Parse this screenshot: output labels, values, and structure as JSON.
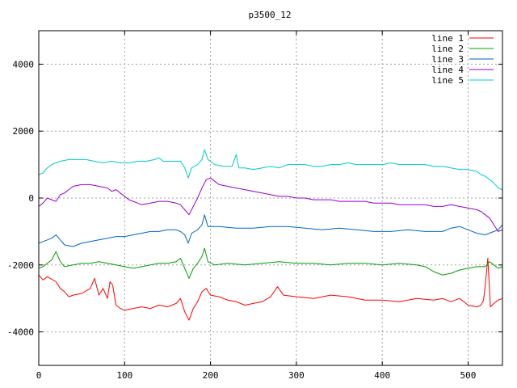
{
  "chart_data": {
    "type": "line",
    "title": "p3500_12",
    "xlabel": "",
    "ylabel": "",
    "xlim": [
      0,
      540
    ],
    "ylim": [
      -5000,
      5000
    ],
    "grid": true,
    "legend_position": "top-right",
    "x_ticks": [
      {
        "value": 0,
        "label": "0"
      },
      {
        "value": 100,
        "label": "100"
      },
      {
        "value": 200,
        "label": "200"
      },
      {
        "value": 300,
        "label": "300"
      },
      {
        "value": 400,
        "label": "400"
      },
      {
        "value": 500,
        "label": "500"
      }
    ],
    "y_ticks": [
      {
        "value": -4000,
        "label": "-4000"
      },
      {
        "value": -2000,
        "label": "-2000"
      },
      {
        "value": 0,
        "label": "0"
      },
      {
        "value": 2000,
        "label": "2000"
      },
      {
        "value": 4000,
        "label": "4000"
      }
    ],
    "series": [
      {
        "name": "line 1",
        "color": "#ff0000",
        "points": [
          [
            0,
            -2300
          ],
          [
            5,
            -2450
          ],
          [
            10,
            -2350
          ],
          [
            20,
            -2500
          ],
          [
            25,
            -2700
          ],
          [
            30,
            -2800
          ],
          [
            35,
            -2950
          ],
          [
            40,
            -2900
          ],
          [
            50,
            -2850
          ],
          [
            60,
            -2700
          ],
          [
            65,
            -2400
          ],
          [
            70,
            -2900
          ],
          [
            75,
            -2700
          ],
          [
            80,
            -3000
          ],
          [
            83,
            -2500
          ],
          [
            86,
            -2600
          ],
          [
            90,
            -3200
          ],
          [
            95,
            -3300
          ],
          [
            100,
            -3350
          ],
          [
            110,
            -3300
          ],
          [
            120,
            -3250
          ],
          [
            130,
            -3300
          ],
          [
            140,
            -3200
          ],
          [
            150,
            -3250
          ],
          [
            160,
            -3150
          ],
          [
            165,
            -3000
          ],
          [
            170,
            -3400
          ],
          [
            175,
            -3650
          ],
          [
            180,
            -3300
          ],
          [
            185,
            -3100
          ],
          [
            190,
            -2800
          ],
          [
            195,
            -2700
          ],
          [
            200,
            -2900
          ],
          [
            210,
            -2950
          ],
          [
            220,
            -3050
          ],
          [
            230,
            -3100
          ],
          [
            240,
            -3200
          ],
          [
            250,
            -3150
          ],
          [
            260,
            -3100
          ],
          [
            270,
            -2950
          ],
          [
            278,
            -2650
          ],
          [
            285,
            -2900
          ],
          [
            300,
            -2950
          ],
          [
            320,
            -3000
          ],
          [
            340,
            -2900
          ],
          [
            360,
            -2950
          ],
          [
            380,
            -3050
          ],
          [
            400,
            -3050
          ],
          [
            420,
            -3100
          ],
          [
            440,
            -3000
          ],
          [
            460,
            -3050
          ],
          [
            470,
            -3000
          ],
          [
            480,
            -3100
          ],
          [
            490,
            -3000
          ],
          [
            500,
            -3200
          ],
          [
            510,
            -3250
          ],
          [
            515,
            -3200
          ],
          [
            518,
            -3050
          ],
          [
            520,
            -2600
          ],
          [
            523,
            -1800
          ],
          [
            526,
            -3250
          ],
          [
            530,
            -3150
          ],
          [
            535,
            -3050
          ],
          [
            540,
            -3000
          ]
        ]
      },
      {
        "name": "line 2",
        "color": "#00a000",
        "points": [
          [
            0,
            -2100
          ],
          [
            5,
            -2050
          ],
          [
            10,
            -1950
          ],
          [
            15,
            -1850
          ],
          [
            20,
            -1600
          ],
          [
            25,
            -1900
          ],
          [
            30,
            -2050
          ],
          [
            40,
            -2000
          ],
          [
            50,
            -1950
          ],
          [
            60,
            -1950
          ],
          [
            70,
            -1900
          ],
          [
            80,
            -1950
          ],
          [
            90,
            -2000
          ],
          [
            100,
            -2050
          ],
          [
            110,
            -2100
          ],
          [
            120,
            -2050
          ],
          [
            130,
            -2000
          ],
          [
            140,
            -1950
          ],
          [
            150,
            -1950
          ],
          [
            160,
            -1900
          ],
          [
            165,
            -1800
          ],
          [
            170,
            -2100
          ],
          [
            175,
            -2400
          ],
          [
            180,
            -2100
          ],
          [
            185,
            -1950
          ],
          [
            190,
            -1750
          ],
          [
            193,
            -1500
          ],
          [
            197,
            -1900
          ],
          [
            205,
            -2000
          ],
          [
            220,
            -1950
          ],
          [
            240,
            -2000
          ],
          [
            260,
            -1950
          ],
          [
            280,
            -1900
          ],
          [
            300,
            -1950
          ],
          [
            320,
            -1950
          ],
          [
            340,
            -2000
          ],
          [
            360,
            -1950
          ],
          [
            380,
            -1950
          ],
          [
            400,
            -2000
          ],
          [
            420,
            -1950
          ],
          [
            440,
            -2000
          ],
          [
            450,
            -2050
          ],
          [
            460,
            -2200
          ],
          [
            470,
            -2300
          ],
          [
            480,
            -2250
          ],
          [
            490,
            -2150
          ],
          [
            500,
            -2100
          ],
          [
            510,
            -2050
          ],
          [
            520,
            -2050
          ],
          [
            525,
            -1900
          ],
          [
            530,
            -2000
          ],
          [
            535,
            -2100
          ],
          [
            540,
            -2050
          ]
        ]
      },
      {
        "name": "line 3",
        "color": "#0066cc",
        "points": [
          [
            0,
            -1350
          ],
          [
            5,
            -1300
          ],
          [
            10,
            -1250
          ],
          [
            15,
            -1200
          ],
          [
            20,
            -1100
          ],
          [
            25,
            -1250
          ],
          [
            30,
            -1400
          ],
          [
            40,
            -1450
          ],
          [
            50,
            -1350
          ],
          [
            60,
            -1300
          ],
          [
            70,
            -1250
          ],
          [
            80,
            -1200
          ],
          [
            90,
            -1150
          ],
          [
            100,
            -1150
          ],
          [
            110,
            -1100
          ],
          [
            120,
            -1050
          ],
          [
            130,
            -1000
          ],
          [
            140,
            -1000
          ],
          [
            150,
            -950
          ],
          [
            160,
            -950
          ],
          [
            165,
            -1000
          ],
          [
            170,
            -1100
          ],
          [
            174,
            -1350
          ],
          [
            178,
            -1050
          ],
          [
            185,
            -950
          ],
          [
            190,
            -800
          ],
          [
            193,
            -500
          ],
          [
            197,
            -850
          ],
          [
            210,
            -850
          ],
          [
            230,
            -900
          ],
          [
            250,
            -900
          ],
          [
            270,
            -850
          ],
          [
            290,
            -850
          ],
          [
            310,
            -900
          ],
          [
            330,
            -950
          ],
          [
            350,
            -900
          ],
          [
            370,
            -950
          ],
          [
            390,
            -1000
          ],
          [
            410,
            -1000
          ],
          [
            430,
            -950
          ],
          [
            450,
            -1000
          ],
          [
            470,
            -1000
          ],
          [
            480,
            -900
          ],
          [
            490,
            -850
          ],
          [
            500,
            -950
          ],
          [
            510,
            -1050
          ],
          [
            520,
            -1100
          ],
          [
            530,
            -1000
          ],
          [
            535,
            -950
          ],
          [
            540,
            -800
          ]
        ]
      },
      {
        "name": "line 4",
        "color": "#9900cc",
        "points": [
          [
            0,
            -250
          ],
          [
            5,
            -150
          ],
          [
            10,
            0
          ],
          [
            15,
            -50
          ],
          [
            20,
            -100
          ],
          [
            25,
            100
          ],
          [
            30,
            150
          ],
          [
            35,
            250
          ],
          [
            40,
            350
          ],
          [
            50,
            400
          ],
          [
            60,
            400
          ],
          [
            70,
            350
          ],
          [
            80,
            300
          ],
          [
            85,
            200
          ],
          [
            90,
            250
          ],
          [
            95,
            150
          ],
          [
            100,
            50
          ],
          [
            105,
            -50
          ],
          [
            110,
            -100
          ],
          [
            115,
            -150
          ],
          [
            120,
            -200
          ],
          [
            130,
            -150
          ],
          [
            140,
            -100
          ],
          [
            150,
            -100
          ],
          [
            160,
            -150
          ],
          [
            165,
            -200
          ],
          [
            170,
            -350
          ],
          [
            175,
            -500
          ],
          [
            180,
            -250
          ],
          [
            185,
            0
          ],
          [
            190,
            300
          ],
          [
            195,
            550
          ],
          [
            200,
            600
          ],
          [
            205,
            500
          ],
          [
            210,
            400
          ],
          [
            220,
            350
          ],
          [
            230,
            300
          ],
          [
            240,
            250
          ],
          [
            250,
            200
          ],
          [
            260,
            150
          ],
          [
            270,
            100
          ],
          [
            280,
            50
          ],
          [
            290,
            50
          ],
          [
            300,
            0
          ],
          [
            310,
            0
          ],
          [
            320,
            -50
          ],
          [
            330,
            -50
          ],
          [
            340,
            -50
          ],
          [
            350,
            -100
          ],
          [
            360,
            -100
          ],
          [
            370,
            -100
          ],
          [
            380,
            -100
          ],
          [
            390,
            -150
          ],
          [
            400,
            -150
          ],
          [
            410,
            -150
          ],
          [
            420,
            -200
          ],
          [
            430,
            -200
          ],
          [
            440,
            -200
          ],
          [
            450,
            -200
          ],
          [
            460,
            -250
          ],
          [
            470,
            -250
          ],
          [
            480,
            -200
          ],
          [
            490,
            -250
          ],
          [
            500,
            -300
          ],
          [
            510,
            -350
          ],
          [
            515,
            -400
          ],
          [
            520,
            -500
          ],
          [
            525,
            -600
          ],
          [
            530,
            -800
          ],
          [
            535,
            -1000
          ],
          [
            540,
            -950
          ]
        ]
      },
      {
        "name": "line 5",
        "color": "#00cccc",
        "points": [
          [
            0,
            700
          ],
          [
            5,
            750
          ],
          [
            10,
            900
          ],
          [
            15,
            1000
          ],
          [
            20,
            1050
          ],
          [
            25,
            1100
          ],
          [
            35,
            1150
          ],
          [
            45,
            1150
          ],
          [
            55,
            1150
          ],
          [
            65,
            1100
          ],
          [
            75,
            1050
          ],
          [
            85,
            1100
          ],
          [
            95,
            1050
          ],
          [
            105,
            1050
          ],
          [
            115,
            1100
          ],
          [
            125,
            1100
          ],
          [
            135,
            1150
          ],
          [
            140,
            1200
          ],
          [
            145,
            1100
          ],
          [
            155,
            1100
          ],
          [
            165,
            1100
          ],
          [
            170,
            900
          ],
          [
            174,
            600
          ],
          [
            178,
            900
          ],
          [
            185,
            1000
          ],
          [
            190,
            1150
          ],
          [
            193,
            1450
          ],
          [
            197,
            1150
          ],
          [
            205,
            1000
          ],
          [
            215,
            950
          ],
          [
            225,
            950
          ],
          [
            230,
            1300
          ],
          [
            233,
            900
          ],
          [
            240,
            900
          ],
          [
            250,
            850
          ],
          [
            260,
            900
          ],
          [
            270,
            950
          ],
          [
            280,
            900
          ],
          [
            290,
            1000
          ],
          [
            300,
            1000
          ],
          [
            310,
            1000
          ],
          [
            320,
            950
          ],
          [
            330,
            950
          ],
          [
            340,
            1000
          ],
          [
            350,
            1000
          ],
          [
            360,
            1050
          ],
          [
            370,
            1000
          ],
          [
            380,
            1000
          ],
          [
            390,
            1000
          ],
          [
            400,
            1000
          ],
          [
            410,
            1050
          ],
          [
            420,
            1000
          ],
          [
            430,
            1000
          ],
          [
            440,
            1000
          ],
          [
            450,
            1000
          ],
          [
            460,
            950
          ],
          [
            470,
            950
          ],
          [
            480,
            900
          ],
          [
            490,
            850
          ],
          [
            500,
            850
          ],
          [
            510,
            800
          ],
          [
            515,
            700
          ],
          [
            520,
            650
          ],
          [
            525,
            550
          ],
          [
            530,
            450
          ],
          [
            535,
            300
          ],
          [
            540,
            250
          ]
        ]
      }
    ]
  }
}
